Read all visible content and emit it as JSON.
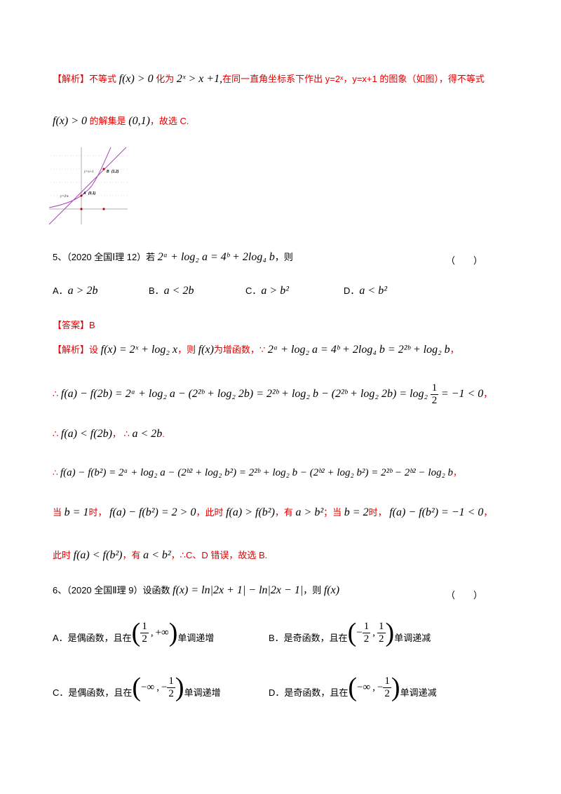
{
  "q4_analysis": {
    "tag": "【解析】",
    "t1": "不等式",
    "m1": "f(x) > 0",
    "t2": "化为",
    "m2": "2ˣ > x +1,",
    "t3": "在同一直角坐标系下作出 y=2ˣ，y=x+1 的图象（如图），得不等式",
    "m3": "f(x) > 0",
    "t4": "的解集是",
    "m4": "(0,1)",
    "t5": "，故选 C."
  },
  "graph": {
    "label_line": "y=x+1",
    "label_exp": "y=2ˣx",
    "point_b": "B",
    "point_b_coord": "(1,2)",
    "point_a": "A",
    "point_a_coord": "(0,1)"
  },
  "q5": {
    "num": "5、（2020 全国Ⅰ理 12）若",
    "stem_math": "2ᵃ + log₂ a = 4ᵇ + 2log₄ b",
    "tail": "，则",
    "paren": "（　　）",
    "options": [
      {
        "label": "A．",
        "math": "a > 2b"
      },
      {
        "label": "B．",
        "math": "a < 2b"
      },
      {
        "label": "C．",
        "math": "a > b²"
      },
      {
        "label": "D．",
        "math": "a < b²"
      }
    ],
    "answer_tag": "【答案】",
    "answer": "B",
    "analysis_tag": "【解析】",
    "a1_t1": "设",
    "a1_m1": "f(x) = 2ˣ + log₂ x",
    "a1_t2": "，则",
    "a1_m2": "f(x)",
    "a1_t3": "为增函数，",
    "a1_because": "∵",
    "a1_m3": "2ᵃ + log₂ a = 4ᵇ + 2log₄ b = 2²ᵇ + log₂ b",
    "a1_end": "，",
    "l2_therefore": "∴",
    "l2_m": "f(a) − f(2b) = 2ᵃ + log₂ a − (2²ᵇ + log₂ 2b) = 2²ᵇ + log₂ b − (2²ᵇ + log₂ 2b) = log₂",
    "l2_frac_num": "1",
    "l2_frac_den": "2",
    "l2_m_end": "= −1 < 0",
    "l2_end": "，",
    "l3_therefore": "∴",
    "l3_m1": "f(a) < f(2b)",
    "l3_t1": "，",
    "l3_therefore2": "∴",
    "l3_m2": "a < 2b",
    "l3_end": ".",
    "l4_therefore": "∴",
    "l4_m": "f(a) − f(b²) = 2ᵃ + log₂ a − (2ᵇ² + log₂ b²) = 2²ᵇ + log₂ b − (2ᵇ² + log₂ b²) = 2²ᵇ − 2ᵇ² − log₂ b",
    "l4_end": "，",
    "l5_t1": "当",
    "l5_m1": "b = 1",
    "l5_t2": "时，",
    "l5_m2": "f(a) − f(b²) = 2 > 0",
    "l5_t3": "，此时",
    "l5_m3": "f(a) > f(b²)",
    "l5_t4": "，有",
    "l5_m4": "a > b²",
    "l5_t5": "；当",
    "l5_m5": "b = 2",
    "l5_t6": "时，",
    "l5_m6": "f(a) − f(b²) = −1 < 0",
    "l5_end": "，",
    "l6_t1": "此时",
    "l6_m1": "f(a) < f(b²)",
    "l6_t2": "，有",
    "l6_m2": "a < b²",
    "l6_t3": "，∴C、D 错误，故选 B."
  },
  "q6": {
    "num": "6、（2020 全国Ⅱ理 9）设函数",
    "stem_math": "f(x) = ln|2x + 1| − ln|2x − 1|",
    "tail": "，则",
    "tail_math": "f(x)",
    "paren": "（　　）",
    "options": [
      {
        "label": "A．是偶函数，且在",
        "l_num": "1",
        "l_den": "2",
        "right": "+∞",
        "suffix": "单调递增"
      },
      {
        "label": "B．是奇函数，且在",
        "l_num": "1",
        "l_den": "2",
        "r_num": "1",
        "r_den": "2",
        "suffix": "单调递减"
      },
      {
        "label": "C．是偶函数，且在",
        "left": "−∞",
        "r_num": "1",
        "r_den": "2",
        "suffix": "单调递增"
      },
      {
        "label": "D．是奇函数，且在",
        "left": "−∞",
        "r_num": "1",
        "r_den": "2",
        "suffix": "单调递减"
      }
    ]
  }
}
